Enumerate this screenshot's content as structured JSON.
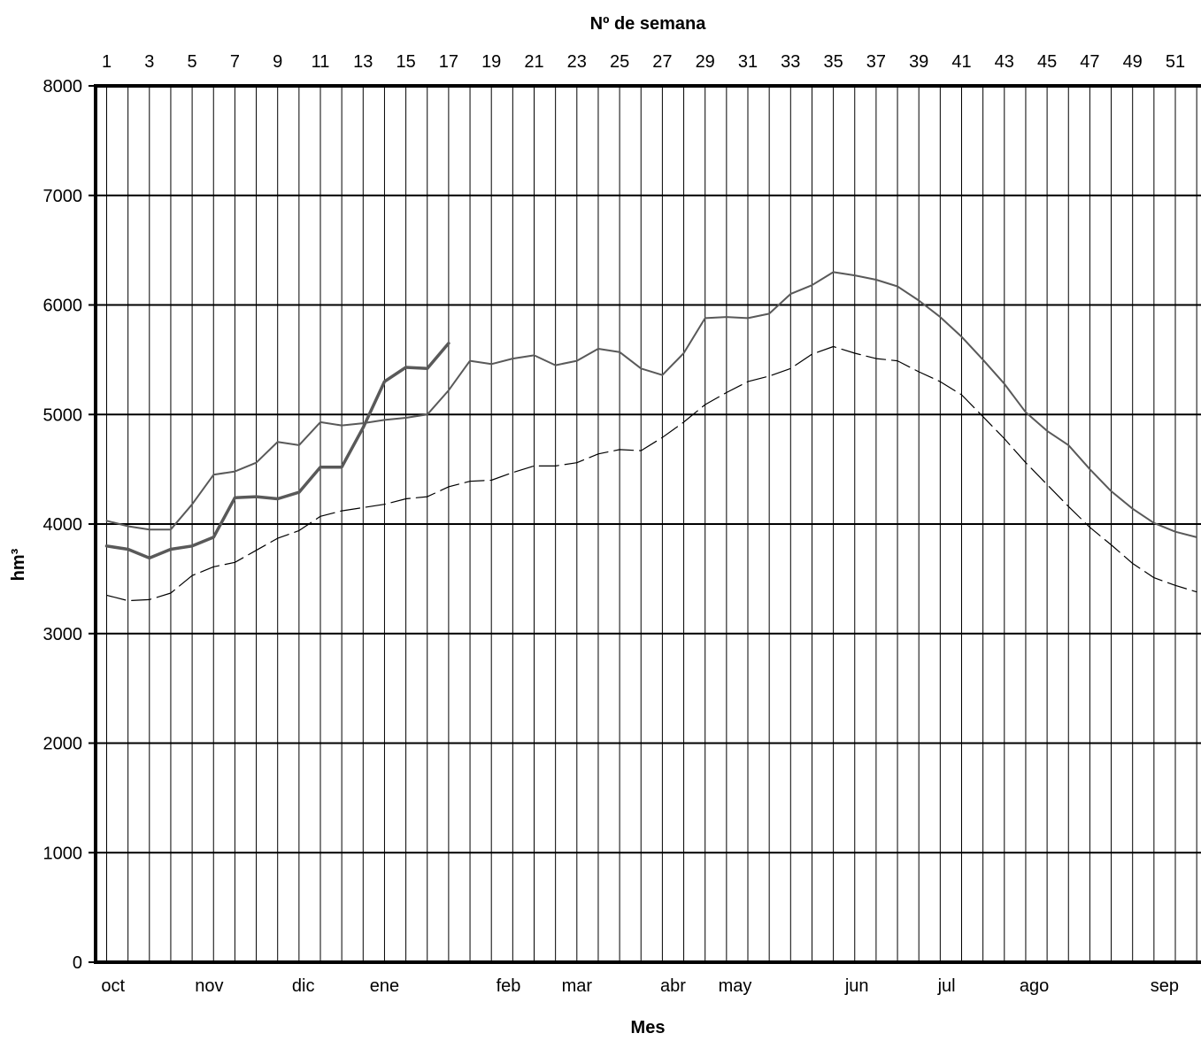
{
  "chart_data": {
    "type": "line",
    "title": "",
    "top_axis_title": "Nº de semana",
    "xlabel": "Mes",
    "ylabel": "hm³",
    "ylim": [
      0,
      8000
    ],
    "yticks": [
      0,
      1000,
      2000,
      3000,
      4000,
      5000,
      6000,
      7000,
      8000
    ],
    "week_range": [
      1,
      52
    ],
    "week_tick_labels": [
      "1",
      "3",
      "5",
      "7",
      "9",
      "11",
      "13",
      "15",
      "17",
      "19",
      "21",
      "23",
      "25",
      "27",
      "29",
      "31",
      "33",
      "35",
      "37",
      "39",
      "41",
      "43",
      "45",
      "47",
      "49",
      "51"
    ],
    "month_labels": [
      {
        "label": "oct",
        "week": 1.3
      },
      {
        "label": "nov",
        "week": 5.8
      },
      {
        "label": "dic",
        "week": 10.2
      },
      {
        "label": "ene",
        "week": 14.0
      },
      {
        "label": "feb",
        "week": 19.8
      },
      {
        "label": "mar",
        "week": 23.0
      },
      {
        "label": "abr",
        "week": 27.5
      },
      {
        "label": "may",
        "week": 30.4
      },
      {
        "label": "jun",
        "week": 36.1
      },
      {
        "label": "jul",
        "week": 40.3
      },
      {
        "label": "ago",
        "week": 44.4
      },
      {
        "label": "sep",
        "week": 50.5
      }
    ],
    "grid": {
      "vertical": true,
      "horizontal": true
    },
    "legend": "none",
    "series": [
      {
        "style": "thick",
        "color": "#595959",
        "x": [
          1,
          2,
          3,
          4,
          5,
          6,
          7,
          8,
          9,
          10,
          11,
          12,
          13,
          14,
          15,
          16,
          17
        ],
        "values": [
          3800,
          3770,
          3690,
          3770,
          3800,
          3880,
          4240,
          4250,
          4230,
          4290,
          4520,
          4520,
          4880,
          5300,
          5430,
          5420,
          5650
        ]
      },
      {
        "style": "thin",
        "color": "#595959",
        "x": [
          1,
          2,
          3,
          4,
          5,
          6,
          7,
          8,
          9,
          10,
          11,
          12,
          13,
          14,
          15,
          16,
          17,
          18,
          19,
          20,
          21,
          22,
          23,
          24,
          25,
          26,
          27,
          28,
          29,
          30,
          31,
          32,
          33,
          34,
          35,
          36,
          37,
          38,
          39,
          40,
          41,
          42,
          43,
          44,
          45,
          46,
          47,
          48,
          49,
          50,
          51,
          52
        ],
        "values": [
          4030,
          3980,
          3950,
          3950,
          4180,
          4450,
          4480,
          4560,
          4750,
          4720,
          4930,
          4900,
          4920,
          4950,
          4970,
          5000,
          5220,
          5490,
          5460,
          5510,
          5540,
          5450,
          5490,
          5600,
          5570,
          5420,
          5360,
          5560,
          5880,
          5890,
          5880,
          5920,
          6100,
          6180,
          6300,
          6270,
          6230,
          6170,
          6040,
          5890,
          5710,
          5500,
          5280,
          5020,
          4850,
          4720,
          4500,
          4300,
          4140,
          4010,
          3930,
          3880
        ]
      },
      {
        "style": "dashed",
        "color": "#000000",
        "x": [
          1,
          2,
          3,
          4,
          5,
          6,
          7,
          8,
          9,
          10,
          11,
          12,
          13,
          14,
          15,
          16,
          17,
          18,
          19,
          20,
          21,
          22,
          23,
          24,
          25,
          26,
          27,
          28,
          29,
          30,
          31,
          32,
          33,
          34,
          35,
          36,
          37,
          38,
          39,
          40,
          41,
          42,
          43,
          44,
          45,
          46,
          47,
          48,
          49,
          50,
          51,
          52
        ],
        "values": [
          3350,
          3300,
          3310,
          3370,
          3530,
          3610,
          3650,
          3760,
          3870,
          3940,
          4070,
          4120,
          4150,
          4180,
          4230,
          4250,
          4340,
          4390,
          4400,
          4470,
          4530,
          4530,
          4560,
          4640,
          4680,
          4670,
          4790,
          4930,
          5090,
          5200,
          5300,
          5350,
          5420,
          5550,
          5620,
          5560,
          5510,
          5490,
          5390,
          5300,
          5180,
          4980,
          4780,
          4560,
          4360,
          4160,
          3970,
          3810,
          3640,
          3510,
          3440,
          3380
        ]
      }
    ]
  }
}
